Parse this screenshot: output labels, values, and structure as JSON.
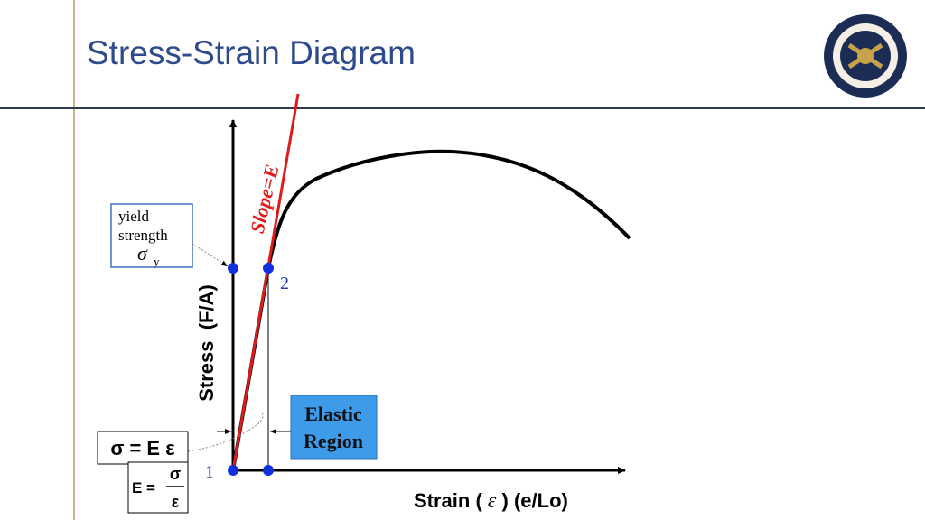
{
  "header": {
    "title": "Stress-Strain Diagram"
  },
  "diagram": {
    "yield_label": {
      "lines": [
        "yield",
        "strength"
      ],
      "symbol": "σ",
      "subscript": "y"
    },
    "slope_label": "Slope=E",
    "points": [
      "1",
      "2"
    ],
    "y_axis_label": "Stress  (F/A)",
    "x_axis_label": {
      "text": "Strain (",
      "symbol": "ε",
      "suffix": ") (e/Lo)"
    },
    "elastic_region": [
      "Elastic",
      "Region"
    ],
    "formula1": "σ = E ε",
    "formula2": {
      "lhs": "E =",
      "numerator": "σ",
      "denominator": "ε"
    }
  }
}
